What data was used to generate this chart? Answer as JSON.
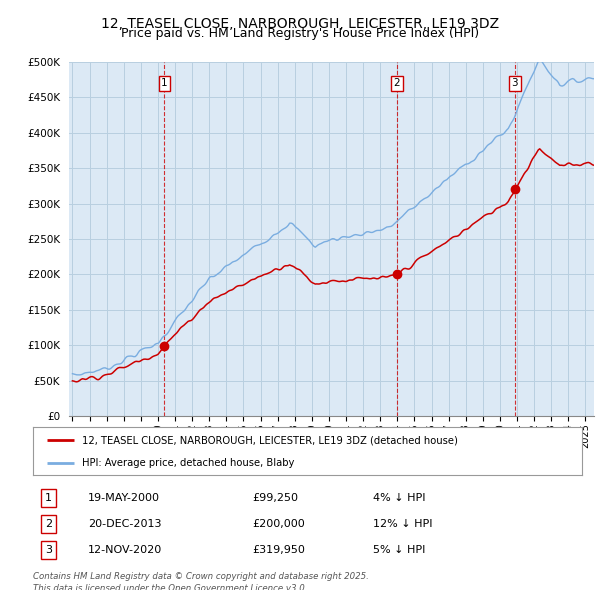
{
  "title": "12, TEASEL CLOSE, NARBOROUGH, LEICESTER, LE19 3DZ",
  "subtitle": "Price paid vs. HM Land Registry's House Price Index (HPI)",
  "ylim": [
    0,
    500000
  ],
  "yticks": [
    0,
    50000,
    100000,
    150000,
    200000,
    250000,
    300000,
    350000,
    400000,
    450000,
    500000
  ],
  "sale_dates": [
    2000.38,
    2013.97,
    2020.87
  ],
  "sale_prices": [
    99250,
    200000,
    319950
  ],
  "sale_labels": [
    "1",
    "2",
    "3"
  ],
  "legend_entries": [
    "12, TEASEL CLOSE, NARBOROUGH, LEICESTER, LE19 3DZ (detached house)",
    "HPI: Average price, detached house, Blaby"
  ],
  "table_rows": [
    [
      "1",
      "19-MAY-2000",
      "£99,250",
      "4% ↓ HPI"
    ],
    [
      "2",
      "20-DEC-2013",
      "£200,000",
      "12% ↓ HPI"
    ],
    [
      "3",
      "12-NOV-2020",
      "£319,950",
      "5% ↓ HPI"
    ]
  ],
  "footnote": "Contains HM Land Registry data © Crown copyright and database right 2025.\nThis data is licensed under the Open Government Licence v3.0.",
  "line_color_red": "#cc0000",
  "line_color_blue": "#7aade0",
  "fill_color_blue": "#d8e8f5",
  "vline_color": "#cc0000",
  "background_color": "#ffffff",
  "chart_bg_color": "#dce9f5",
  "grid_color": "#b8cfe0",
  "title_fontsize": 10,
  "subtitle_fontsize": 9
}
